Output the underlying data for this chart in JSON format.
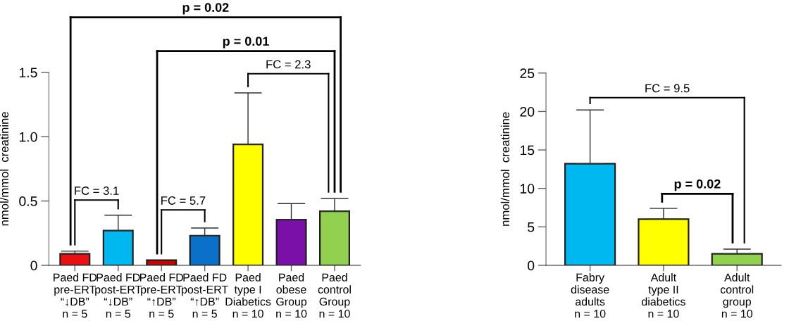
{
  "chart_data": [
    {
      "type": "bar",
      "ylabel": "nmol/mmol  creatinine",
      "categories": [
        "Paed FD\npre-ERT\n“↓DB”\nn = 5",
        "Paed FD\npost-ERT\n“↓DB”\nn = 5",
        "Paed FD\npre-ERT\n“↑DB”\nn = 5",
        "Paed FD\npost-ERT\n“↑DB”\nn = 5",
        "Paed\ntype I\nDiabetics\nn = 10",
        "Paed\nobese\nGroup\nn = 10",
        "Paed\ncontrol\nGroup\nn = 10"
      ],
      "values": [
        0.09,
        0.27,
        0.04,
        0.23,
        0.94,
        0.355,
        0.42
      ],
      "errors": [
        [
          0.09,
          0.11
        ],
        [
          0.27,
          0.39
        ],
        null,
        [
          0.23,
          0.29
        ],
        [
          0.94,
          1.34
        ],
        [
          0.355,
          0.48
        ],
        [
          0.42,
          0.52
        ]
      ],
      "colors": [
        "#e81010",
        "#00b8f0",
        "#c80000",
        "#0a70c8",
        "#ffff00",
        "#7a10a8",
        "#92d050"
      ],
      "ylim": [
        0,
        1.5
      ],
      "yticks": [
        0,
        0.5,
        {
          "value": 1.0,
          "label": "1.0"
        },
        1.5
      ],
      "grid": false,
      "annotations": [
        "FC = 3.1",
        "FC = 5.7",
        "FC = 2.3",
        "p = 0.01",
        "p = 0.02"
      ]
    },
    {
      "type": "bar",
      "ylabel": "nmol/mmol  creatinine",
      "categories": [
        "Fabry\ndisease\nadults\nn = 10",
        "Adult\ntype II\ndiabetics\nn = 10",
        "Adult\ncontrol\ngroup\nn = 10"
      ],
      "values": [
        13.2,
        6.0,
        1.5
      ],
      "errors": [
        [
          13.2,
          20.2
        ],
        [
          6.0,
          7.4
        ],
        [
          1.5,
          2.1
        ]
      ],
      "colors": [
        "#00b8f0",
        "#ffff00",
        "#92d050"
      ],
      "ylim": [
        0,
        25
      ],
      "yticks": [
        0,
        5,
        10,
        15,
        20,
        25
      ],
      "grid": false,
      "annotations": [
        "FC = 9.5",
        "p = 0.02"
      ]
    }
  ]
}
